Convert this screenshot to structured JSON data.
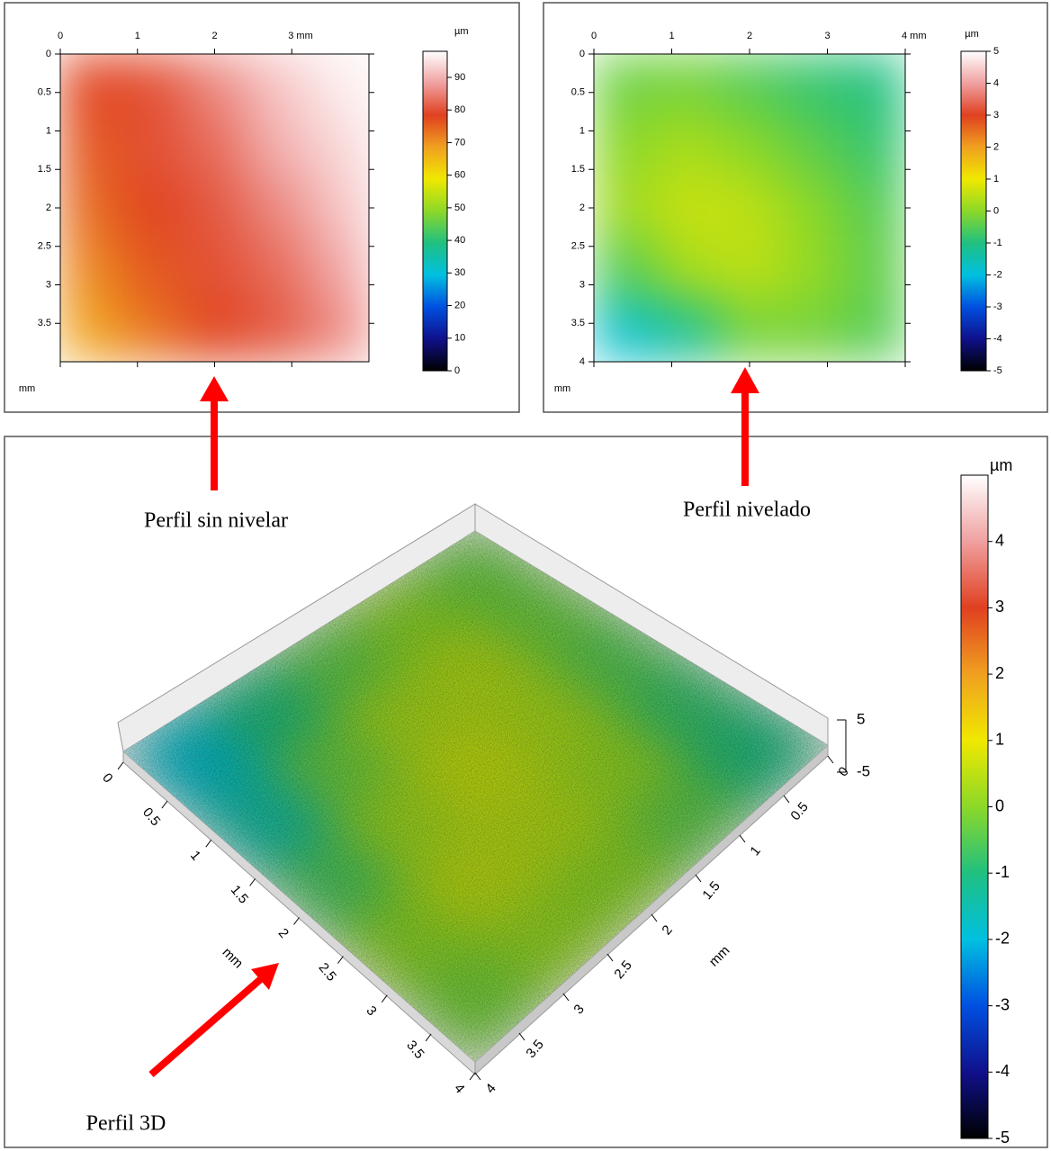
{
  "chart_data": [
    {
      "type": "heatmap",
      "axis_label": "mm",
      "xlim": [
        0,
        4
      ],
      "xticks": [
        0,
        1,
        2,
        {
          "value": 3,
          "label": "3 mm"
        }
      ],
      "ylim": [
        0,
        4
      ],
      "yticks": [
        0,
        0.5,
        1,
        1.5,
        2,
        2.5,
        3,
        3.5
      ],
      "z": [
        [
          78,
          80,
          86,
          92,
          96
        ],
        [
          76,
          80,
          83,
          90,
          94
        ],
        [
          74,
          78,
          81,
          86,
          92
        ],
        [
          71,
          76,
          80,
          83,
          89
        ],
        [
          68,
          73,
          78,
          81,
          86
        ]
      ],
      "clim": [
        0,
        98
      ],
      "cticks": [
        0,
        10,
        20,
        30,
        40,
        50,
        60,
        70,
        80,
        90
      ],
      "colorbar_label": "µm"
    },
    {
      "type": "heatmap",
      "axis_label": "mm",
      "xlim": [
        0,
        4
      ],
      "xticks": [
        0,
        1,
        2,
        3,
        {
          "value": 4,
          "label": "4 mm"
        }
      ],
      "ylim": [
        0,
        4
      ],
      "yticks": [
        0,
        0.5,
        1,
        1.5,
        2,
        2.5,
        3,
        3.5,
        4
      ],
      "z": [
        [
          -0.3,
          -0.2,
          -0.5,
          -0.8,
          -1.0
        ],
        [
          0,
          0.3,
          0,
          -0.4,
          -0.8
        ],
        [
          0.2,
          0.6,
          0.5,
          0,
          -0.5
        ],
        [
          -0.5,
          0.3,
          0.5,
          0.1,
          -0.4
        ],
        [
          -1.8,
          -1.2,
          -0.2,
          -0.2,
          -0.5
        ]
      ],
      "clim": [
        -5,
        5
      ],
      "cticks": [
        -5,
        -4,
        -3,
        -2,
        -1,
        0,
        1,
        2,
        3,
        4,
        5
      ],
      "colorbar_label": "µm"
    },
    {
      "type": "surface",
      "x_label": "mm",
      "y_label": "mm",
      "xlim": [
        0,
        4
      ],
      "xticks": [
        0,
        0.5,
        1,
        1.5,
        2,
        2.5,
        3,
        3.5,
        4
      ],
      "ylim": [
        0,
        4
      ],
      "yticks": [
        0,
        0.5,
        1,
        1.5,
        2,
        2.5,
        3,
        3.5,
        4
      ],
      "zlim": [
        -5,
        5
      ],
      "zticks": [
        -5,
        5
      ],
      "z": [
        [
          -0.3,
          0,
          -0.4,
          -1.0,
          -1.8
        ],
        [
          -0.3,
          0.4,
          0.3,
          -0.3,
          -1.4
        ],
        [
          -0.5,
          0.3,
          0.6,
          0.2,
          -0.6
        ],
        [
          -0.8,
          0.1,
          0.4,
          0.5,
          0
        ],
        [
          -1.0,
          -0.4,
          0,
          0.1,
          -0.2
        ]
      ],
      "clim": [
        -5,
        5
      ],
      "cticks": [
        -5,
        -4,
        -3,
        -2,
        -1,
        0,
        1,
        2,
        3,
        4
      ],
      "colorbar_label": "µm"
    }
  ],
  "annotations": [
    "Perfil sin nivelar",
    "Perfil nivelado",
    "Perfil 3D"
  ],
  "colormap": [
    "#000000",
    "#10108c",
    "#0050e0",
    "#00c0e0",
    "#20c080",
    "#8cd828",
    "#f0e800",
    "#f0a020",
    "#e04020",
    "#f0a0a0",
    "#ffffff"
  ]
}
